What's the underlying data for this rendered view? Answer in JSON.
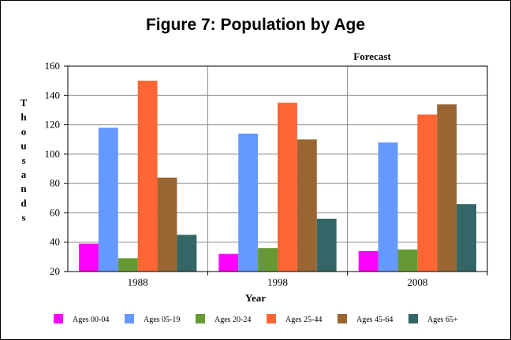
{
  "chart_data": {
    "type": "bar",
    "title": "Figure 7:  Population by Age",
    "annotation": "Forecast",
    "xlabel": "Year",
    "ylabel": "Thousands",
    "categories": [
      "1988",
      "1998",
      "2008"
    ],
    "ylim": [
      20,
      160
    ],
    "yticks": [
      "20",
      "40",
      "60",
      "80",
      "100",
      "120",
      "140",
      "160"
    ],
    "grid": true,
    "legend_position": "bottom",
    "series": [
      {
        "name": "Ages 00-04",
        "color": "#ff00ff",
        "values": [
          39,
          32,
          34
        ]
      },
      {
        "name": "Ages 05-19",
        "color": "#6699ff",
        "values": [
          118,
          114,
          108
        ]
      },
      {
        "name": "Ages 20-24",
        "color": "#669933",
        "values": [
          29,
          36,
          35
        ]
      },
      {
        "name": "Ages 25-44",
        "color": "#ff6633",
        "values": [
          150,
          135,
          127
        ]
      },
      {
        "name": "Ages 45-64",
        "color": "#996633",
        "values": [
          84,
          110,
          134
        ]
      },
      {
        "name": "Ages 65+",
        "color": "#336666",
        "values": [
          45,
          56,
          66
        ]
      }
    ]
  }
}
